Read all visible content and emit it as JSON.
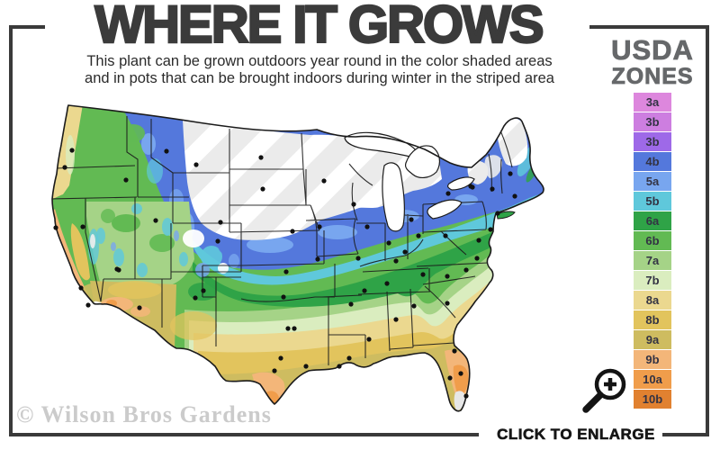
{
  "header": {
    "title": "WHERE IT GROWS",
    "subtitle_line1": "This plant can be grown outdoors year round in the color shaded areas",
    "subtitle_line2": "and in pots that can be brought indoors during winter in the striped area"
  },
  "legend": {
    "title_line1": "USDA",
    "title_line2": "ZONES",
    "zones": [
      {
        "label": "3a",
        "color": "#DD87DD"
      },
      {
        "label": "3b",
        "color": "#CD7EE0"
      },
      {
        "label": "3b",
        "color": "#9E69E8"
      },
      {
        "label": "4b",
        "color": "#5478DC"
      },
      {
        "label": "5a",
        "color": "#78A6EF"
      },
      {
        "label": "5b",
        "color": "#5FC8DB"
      },
      {
        "label": "6a",
        "color": "#2FA347"
      },
      {
        "label": "6b",
        "color": "#62BA53"
      },
      {
        "label": "7a",
        "color": "#A5D387"
      },
      {
        "label": "7b",
        "color": "#DAEDBF"
      },
      {
        "label": "8a",
        "color": "#EBD88F"
      },
      {
        "label": "8b",
        "color": "#E2C45D"
      },
      {
        "label": "9a",
        "color": "#CEBC60"
      },
      {
        "label": "9b",
        "color": "#F3B679"
      },
      {
        "label": "10a",
        "color": "#F09D4B"
      },
      {
        "label": "10b",
        "color": "#E18130"
      }
    ]
  },
  "map": {
    "striped_area_base": "#EBEBEB",
    "striped_area_stripe": "#FFFFFF",
    "outline_color": "#1B1B1B",
    "city_dot_color": "#111111",
    "excluded_area_color": "#E7E7E7"
  },
  "footer": {
    "watermark": "© Wilson Bros Gardens",
    "enlarge_label": "CLICK TO ENLARGE"
  },
  "colors": {
    "frame": "#3A3A3A",
    "title": "#3B3B3B",
    "subtitle": "#2B2B2B",
    "legend_title": "#66686A",
    "watermark": "#CBCBCB"
  }
}
